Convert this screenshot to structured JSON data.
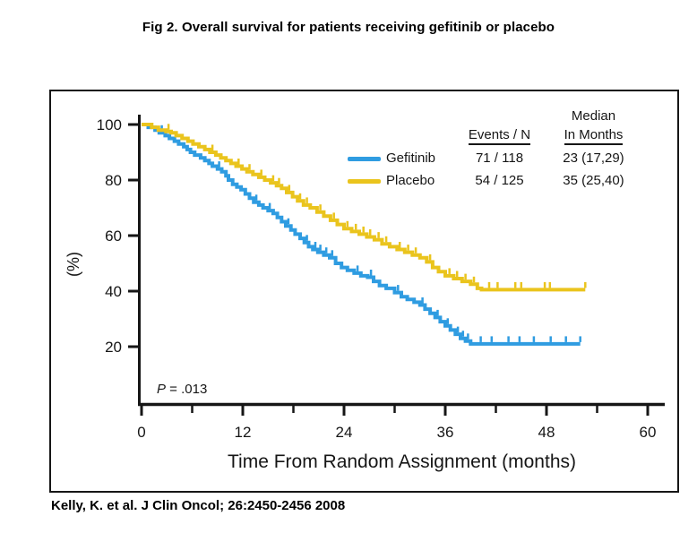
{
  "title": "Fig 2. Overall survival for patients receiving gefitinib or placebo",
  "citation": "Kelly, K. et al. J Clin Oncol; 26:2450-2456 2008",
  "chart_data": {
    "type": "line",
    "subtype": "kaplan-meier-step",
    "title": "Fig 2. Overall survival for patients receiving gefitinib or placebo",
    "xlabel": "Time From Random Assignment (months)",
    "ylabel": "(%)",
    "xlim": [
      0,
      62
    ],
    "ylim": [
      0,
      104
    ],
    "x_ticks_major": [
      0,
      12,
      24,
      36,
      48,
      60
    ],
    "x_ticks_minor": [
      6,
      18,
      30,
      42,
      54
    ],
    "y_ticks": [
      20,
      40,
      60,
      80,
      100
    ],
    "grid": "off",
    "legend_position": "upper-right-inside",
    "p_value_label": "P",
    "p_value_text": " = .013",
    "legend": {
      "events_header": "Events / N",
      "median_header_line1": "Median",
      "median_header_line2": "In Months"
    },
    "series": [
      {
        "name": "Gefitinib",
        "color": "#2F9CE1",
        "events_n": "71 / 118",
        "median": "23 (17,29)",
        "median_months": 23,
        "median_ci": [
          17,
          29
        ],
        "end_month": 52.0,
        "steps": [
          [
            0,
            100
          ],
          [
            0.8,
            99
          ],
          [
            1.6,
            98
          ],
          [
            2.1,
            97
          ],
          [
            2.8,
            96
          ],
          [
            3.3,
            95
          ],
          [
            3.9,
            94
          ],
          [
            4.4,
            93
          ],
          [
            5.0,
            92
          ],
          [
            5.4,
            91
          ],
          [
            5.8,
            90
          ],
          [
            6.3,
            89
          ],
          [
            7.0,
            88
          ],
          [
            7.5,
            87
          ],
          [
            8.0,
            86
          ],
          [
            8.4,
            85
          ],
          [
            9.0,
            84
          ],
          [
            9.5,
            83
          ],
          [
            10.0,
            81.5
          ],
          [
            10.3,
            80
          ],
          [
            10.8,
            78.5
          ],
          [
            11.3,
            77.5
          ],
          [
            11.8,
            76.5
          ],
          [
            12.3,
            75
          ],
          [
            12.8,
            73.5
          ],
          [
            13.3,
            72
          ],
          [
            13.9,
            71
          ],
          [
            14.4,
            70
          ],
          [
            15.0,
            69
          ],
          [
            15.6,
            68
          ],
          [
            16.1,
            66.5
          ],
          [
            16.6,
            65
          ],
          [
            17.1,
            63.5
          ],
          [
            17.7,
            62
          ],
          [
            18.2,
            60.5
          ],
          [
            18.8,
            59
          ],
          [
            19.3,
            57.5
          ],
          [
            19.8,
            56
          ],
          [
            20.3,
            55
          ],
          [
            20.9,
            54
          ],
          [
            21.6,
            53
          ],
          [
            22.3,
            52
          ],
          [
            23.0,
            50
          ],
          [
            23.7,
            48.5
          ],
          [
            24.4,
            47.5
          ],
          [
            25.2,
            46.5
          ],
          [
            26.0,
            45.5
          ],
          [
            26.8,
            45
          ],
          [
            27.5,
            43.5
          ],
          [
            28.2,
            42
          ],
          [
            29.0,
            41
          ],
          [
            30.0,
            39.5
          ],
          [
            30.8,
            38
          ],
          [
            31.5,
            37
          ],
          [
            32.3,
            36
          ],
          [
            33.0,
            35
          ],
          [
            33.6,
            33.5
          ],
          [
            34.2,
            32
          ],
          [
            34.8,
            30.5
          ],
          [
            35.4,
            29
          ],
          [
            36.0,
            27.5
          ],
          [
            36.6,
            26
          ],
          [
            37.2,
            24.5
          ],
          [
            37.8,
            23
          ],
          [
            38.4,
            22
          ],
          [
            39.0,
            21
          ]
        ],
        "censors": [
          2.4,
          9.2,
          13.6,
          15.2,
          17.4,
          19.6,
          20.6,
          21.2,
          21.9,
          22.6,
          25.6,
          27.2,
          30.4,
          33.3,
          35.1,
          36.3,
          37.5,
          38.1,
          38.7,
          40.2,
          41.5,
          43.5,
          44.8,
          46.5,
          48.5,
          50.3,
          52.0
        ]
      },
      {
        "name": "Placebo",
        "color": "#EAC41D",
        "events_n": "54 / 125",
        "median": "35 (25,40)",
        "median_months": 35,
        "median_ci": [
          25,
          40
        ],
        "end_month": 52.6,
        "steps": [
          [
            0,
            100
          ],
          [
            1.2,
            99
          ],
          [
            2.0,
            98
          ],
          [
            2.9,
            97.5
          ],
          [
            3.5,
            97
          ],
          [
            4.1,
            96
          ],
          [
            4.8,
            95
          ],
          [
            5.5,
            94
          ],
          [
            6.1,
            93
          ],
          [
            6.8,
            92
          ],
          [
            7.5,
            91
          ],
          [
            8.1,
            90
          ],
          [
            8.8,
            89
          ],
          [
            9.4,
            88
          ],
          [
            10.0,
            87
          ],
          [
            10.6,
            86
          ],
          [
            11.2,
            85
          ],
          [
            11.9,
            84
          ],
          [
            12.5,
            83
          ],
          [
            13.2,
            82
          ],
          [
            13.9,
            81
          ],
          [
            14.6,
            80
          ],
          [
            15.3,
            79
          ],
          [
            16.0,
            78
          ],
          [
            16.6,
            77
          ],
          [
            17.2,
            75.5
          ],
          [
            17.9,
            74
          ],
          [
            18.5,
            72.5
          ],
          [
            19.2,
            71
          ],
          [
            20.0,
            70
          ],
          [
            20.8,
            68.5
          ],
          [
            21.6,
            67
          ],
          [
            22.4,
            65.5
          ],
          [
            23.2,
            64
          ],
          [
            24.0,
            62.5
          ],
          [
            24.9,
            61.5
          ],
          [
            25.8,
            60.5
          ],
          [
            26.7,
            59.5
          ],
          [
            27.6,
            58.5
          ],
          [
            28.5,
            57
          ],
          [
            29.4,
            56
          ],
          [
            30.3,
            55
          ],
          [
            31.2,
            54
          ],
          [
            32.1,
            53
          ],
          [
            33.0,
            52
          ],
          [
            33.8,
            50.5
          ],
          [
            34.5,
            48.5
          ],
          [
            35.2,
            47
          ],
          [
            36.0,
            45.5
          ],
          [
            37.0,
            44.5
          ],
          [
            38.0,
            43.5
          ],
          [
            39.0,
            42.5
          ],
          [
            39.8,
            41
          ],
          [
            40.3,
            40.5
          ]
        ],
        "censors": [
          3.2,
          8.4,
          11.5,
          12.8,
          14.2,
          15.6,
          16.3,
          17.5,
          18.8,
          19.6,
          21.2,
          22.8,
          24.4,
          25.4,
          26.3,
          27.1,
          28.1,
          29.0,
          30.6,
          31.6,
          32.5,
          34.2,
          36.5,
          37.4,
          38.4,
          39.4,
          41.2,
          42.2,
          44.3,
          45.0,
          47.8,
          48.4,
          52.6
        ]
      }
    ]
  }
}
